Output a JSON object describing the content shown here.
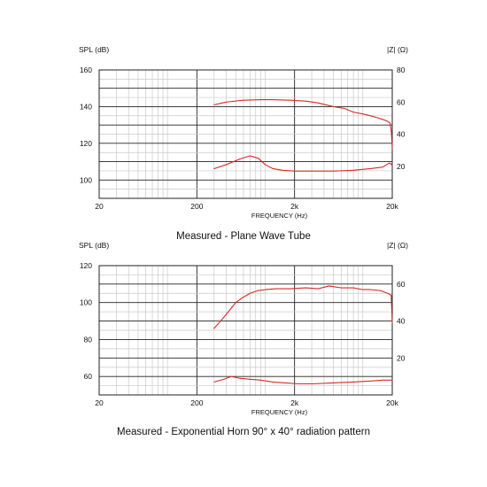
{
  "colors": {
    "curve": "#d42a24",
    "major_grid": "#222222",
    "minor_grid": "#c9c9c9"
  },
  "chart_data": [
    {
      "type": "line",
      "caption": "Measured - Plane Wave Tube",
      "ylabel_left": "SPL (dB)",
      "ylabel_right": "|Z| (Ω)",
      "xlabel": "FREQUENCY (Hz)",
      "x_scale": "log",
      "xlim": [
        20,
        20000
      ],
      "x_ticks": [
        {
          "v": 20,
          "t": "20"
        },
        {
          "v": 200,
          "t": "200"
        },
        {
          "v": 2000,
          "t": "2k"
        },
        {
          "v": 20000,
          "t": "20k"
        }
      ],
      "ylim": [
        90,
        160
      ],
      "y_ticks": [
        100,
        120,
        140,
        160
      ],
      "ylim_right": [
        0,
        80
      ],
      "y_ticks_right": [
        20,
        40,
        60,
        80
      ],
      "grid": true,
      "series": [
        {
          "axis": "left",
          "x": [
            300,
            400,
            600,
            900,
            1200,
            1800,
            2600,
            3500,
            5000,
            6500,
            8000,
            10000,
            12000,
            14000,
            16000,
            18000,
            19000,
            19600,
            20000
          ],
          "y": [
            141,
            142.5,
            143.5,
            143.8,
            143.8,
            143.5,
            143,
            142,
            140,
            139,
            137,
            136,
            135,
            134,
            133,
            132,
            131,
            126,
            117
          ]
        },
        {
          "axis": "right",
          "x": [
            300,
            400,
            550,
            700,
            850,
            1000,
            1200,
            1500,
            2000,
            3000,
            5000,
            8000,
            12000,
            16000,
            18000,
            19000,
            20000
          ],
          "y": [
            18.5,
            21,
            24.5,
            26.5,
            25,
            21,
            18.5,
            17.5,
            17,
            17,
            17,
            17.5,
            18.5,
            19.5,
            21.5,
            22,
            20.5
          ]
        }
      ]
    },
    {
      "type": "line",
      "caption": "Measured - Exponential Horn 90° x 40° radiation pattern",
      "ylabel_left": "SPL (dB)",
      "ylabel_right": "|Z| (Ω)",
      "xlabel": "FREQUENCY (Hz)",
      "x_scale": "log",
      "xlim": [
        20,
        20000
      ],
      "x_ticks": [
        {
          "v": 20,
          "t": "20"
        },
        {
          "v": 200,
          "t": "200"
        },
        {
          "v": 2000,
          "t": "2k"
        },
        {
          "v": 20000,
          "t": "20k"
        }
      ],
      "ylim": [
        50,
        120
      ],
      "y_ticks": [
        60,
        80,
        100,
        120
      ],
      "ylim_right": [
        0,
        70
      ],
      "y_ticks_right": [
        20,
        40,
        60
      ],
      "grid": true,
      "series": [
        {
          "axis": "left",
          "x": [
            300,
            350,
            420,
            500,
            600,
            700,
            850,
            1000,
            1300,
            1800,
            2600,
            3500,
            4500,
            6000,
            8000,
            10000,
            12000,
            15000,
            18000,
            19500,
            20000
          ],
          "y": [
            86,
            90,
            95,
            100,
            103,
            105,
            106.5,
            107,
            107.5,
            107.5,
            108,
            107.5,
            109,
            108,
            108,
            107,
            107,
            106.5,
            105,
            104,
            89
          ]
        },
        {
          "axis": "right",
          "x": [
            300,
            380,
            450,
            550,
            700,
            900,
            1200,
            1600,
            2200,
            3000,
            5000,
            8000,
            12000,
            16000,
            20000
          ],
          "y": [
            7,
            8.5,
            10,
            9,
            8.5,
            8,
            7,
            6.5,
            6,
            6,
            6.5,
            7,
            7.5,
            8,
            8
          ]
        }
      ]
    }
  ]
}
